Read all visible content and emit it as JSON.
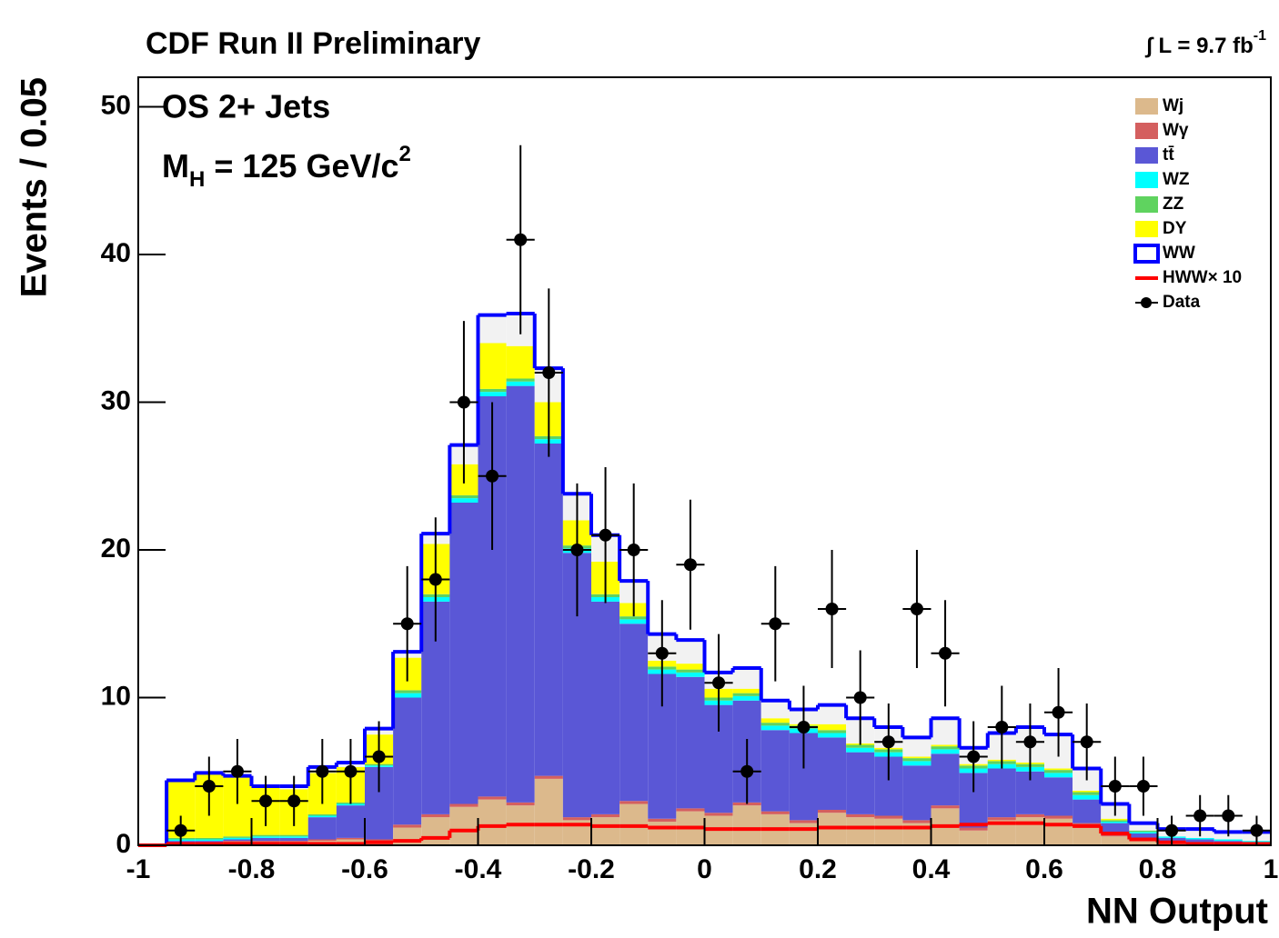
{
  "chart_data": {
    "type": "histogram",
    "title": "CDF Run II Preliminary",
    "luminosity": {
      "text": "∫ L = 9.7 fb",
      "sup": "-1"
    },
    "annotations": [
      "OS 2+ Jets"
    ],
    "mass_label": {
      "text": "M",
      "sub": "H",
      "rest": " = 125 GeV/c",
      "sup": "2"
    },
    "y_label": "Events / 0.05",
    "x_label": "NN Output",
    "xlim": [
      -1,
      1
    ],
    "ylim": [
      0,
      52
    ],
    "xticks": [
      -1,
      -0.8,
      -0.6,
      -0.4,
      -0.2,
      0,
      0.2,
      0.4,
      0.6,
      0.8,
      1
    ],
    "yticks": [
      0,
      10,
      20,
      30,
      40,
      50
    ],
    "legend": "top-right",
    "bins": [
      -1,
      -0.95,
      -0.9,
      -0.85,
      -0.8,
      -0.75,
      -0.7,
      -0.65,
      -0.6,
      -0.55,
      -0.5,
      -0.45,
      -0.4,
      -0.35,
      -0.3,
      -0.25,
      -0.2,
      -0.15,
      -0.1,
      -0.05,
      0,
      0.05,
      0.1,
      0.15,
      0.2,
      0.25,
      0.3,
      0.35,
      0.4,
      0.45,
      0.5,
      0.55,
      0.6,
      0.65,
      0.7,
      0.75,
      0.8,
      0.85,
      0.9,
      0.95,
      1
    ],
    "series": [
      {
        "name": "Wj",
        "color": "#dcb98c",
        "values": [
          0,
          0.1,
          0.1,
          0.2,
          0.2,
          0.2,
          0.3,
          0.4,
          0.3,
          1.2,
          1.9,
          2.6,
          3.1,
          2.7,
          4.5,
          1.7,
          1.9,
          2.8,
          1.6,
          2.3,
          2.0,
          2.7,
          2.1,
          1.5,
          2.2,
          1.9,
          1.8,
          1.5,
          2.5,
          1.0,
          1.7,
          1.9,
          1.8,
          1.3,
          0.6,
          0.3,
          0.1,
          0.1,
          0.1,
          0.1
        ]
      },
      {
        "name": "Wγ",
        "color": "#d45f5f",
        "values": [
          0,
          0.1,
          0.1,
          0.1,
          0.1,
          0.1,
          0.1,
          0.1,
          0.1,
          0.2,
          0.2,
          0.2,
          0.2,
          0.2,
          0.2,
          0.2,
          0.2,
          0.2,
          0.2,
          0.2,
          0.2,
          0.2,
          0.2,
          0.2,
          0.2,
          0.2,
          0.2,
          0.2,
          0.2,
          0.2,
          0.2,
          0.2,
          0.2,
          0.2,
          0.1,
          0.1,
          0.1,
          0,
          0,
          0
        ]
      },
      {
        "name": "tt̄",
        "color": "#5a57d6",
        "values": [
          0,
          0.1,
          0.1,
          0.1,
          0.2,
          0.2,
          1.5,
          2.2,
          4.9,
          8.6,
          14.4,
          20.4,
          27.1,
          28.2,
          22.5,
          17.9,
          14.4,
          12.0,
          9.8,
          8.9,
          7.3,
          6.9,
          5.5,
          5.9,
          4.9,
          4.2,
          4.0,
          3.7,
          3.5,
          3.7,
          3.3,
          2.9,
          2.6,
          1.6,
          0.8,
          0.4,
          0.3,
          0.3,
          0.2,
          0.1
        ]
      },
      {
        "name": "WZ",
        "color": "#00ffff",
        "values": [
          0,
          0.1,
          0.1,
          0.1,
          0.1,
          0.1,
          0.1,
          0.1,
          0.1,
          0.3,
          0.3,
          0.3,
          0.3,
          0.3,
          0.3,
          0.3,
          0.3,
          0.3,
          0.3,
          0.3,
          0.3,
          0.3,
          0.3,
          0.3,
          0.3,
          0.3,
          0.3,
          0.3,
          0.3,
          0.3,
          0.3,
          0.3,
          0.3,
          0.3,
          0.1,
          0.1,
          0.1,
          0.1,
          0.1,
          0.1
        ]
      },
      {
        "name": "ZZ",
        "color": "#5fd35f",
        "values": [
          0,
          0.1,
          0.1,
          0.1,
          0.1,
          0.1,
          0.1,
          0.1,
          0.1,
          0.2,
          0.2,
          0.2,
          0.2,
          0.2,
          0.2,
          0.2,
          0.2,
          0.2,
          0.2,
          0.2,
          0.2,
          0.2,
          0.2,
          0.2,
          0.2,
          0.2,
          0.2,
          0.2,
          0.2,
          0.2,
          0.2,
          0.2,
          0.2,
          0.2,
          0.1,
          0.1,
          0,
          0,
          0,
          0
        ]
      },
      {
        "name": "DY",
        "color": "#ffff00",
        "values": [
          0,
          3.8,
          4.3,
          4.0,
          3.2,
          3.1,
          2.8,
          2.4,
          2.0,
          2.2,
          3.4,
          2.1,
          3.1,
          2.2,
          2.3,
          1.7,
          2.2,
          0.9,
          0.4,
          0.4,
          0.6,
          0.3,
          0.3,
          0.1,
          0.4,
          0.1,
          0.1,
          0.1,
          0.1,
          0.1,
          0.1,
          0.1,
          0.1,
          0.1,
          0.1,
          0,
          0,
          0,
          0,
          0
        ]
      },
      {
        "name": "WW",
        "color": "#0000ff",
        "fill": "#f2f2f2",
        "values": [
          0,
          0.1,
          0.1,
          0.1,
          0.1,
          0.2,
          0.4,
          0.3,
          0.4,
          0.4,
          0.7,
          1.3,
          1.9,
          2.2,
          2.3,
          1.8,
          1.8,
          1.5,
          1.8,
          1.6,
          1.1,
          1.4,
          1.2,
          1.0,
          1.3,
          1.7,
          1.4,
          1.3,
          1.8,
          1.1,
          1.8,
          2.4,
          2.3,
          1.5,
          1.0,
          0.5,
          0.5,
          0.6,
          0.5,
          0.6
        ]
      }
    ],
    "overlay": {
      "name": "HWW× 10",
      "color": "#ff0000",
      "values": [
        0,
        0.1,
        0.1,
        0.1,
        0.1,
        0.1,
        0.1,
        0.1,
        0.2,
        0.3,
        0.5,
        1.0,
        1.3,
        1.4,
        1.4,
        1.4,
        1.3,
        1.3,
        1.2,
        1.2,
        1.1,
        1.1,
        1.1,
        1.1,
        1.2,
        1.2,
        1.2,
        1.2,
        1.3,
        1.4,
        1.5,
        1.5,
        1.4,
        1.3,
        0.8,
        0.4,
        0.2,
        0.1,
        0.1,
        0.1
      ]
    },
    "data": {
      "name": "Data",
      "color": "#000000",
      "values": [
        null,
        1,
        4,
        5,
        3,
        3,
        5,
        5,
        6,
        15,
        18,
        30,
        25,
        41,
        32,
        20,
        21,
        20,
        13,
        19,
        11,
        5,
        15,
        8,
        16,
        10,
        7,
        16,
        13,
        6,
        8,
        7,
        9,
        7,
        4,
        4,
        1,
        2,
        2,
        1
      ],
      "errors": [
        null,
        1,
        2,
        2.2,
        1.7,
        1.7,
        2.2,
        2.2,
        2.4,
        3.9,
        4.2,
        5.5,
        5,
        6.4,
        5.7,
        4.5,
        4.6,
        4.5,
        3.6,
        4.4,
        3.3,
        2.2,
        3.9,
        2.8,
        4,
        3.2,
        2.6,
        4,
        3.6,
        2.4,
        2.8,
        2.6,
        3,
        2.6,
        2,
        2,
        1,
        1.4,
        1.4,
        1
      ]
    }
  }
}
